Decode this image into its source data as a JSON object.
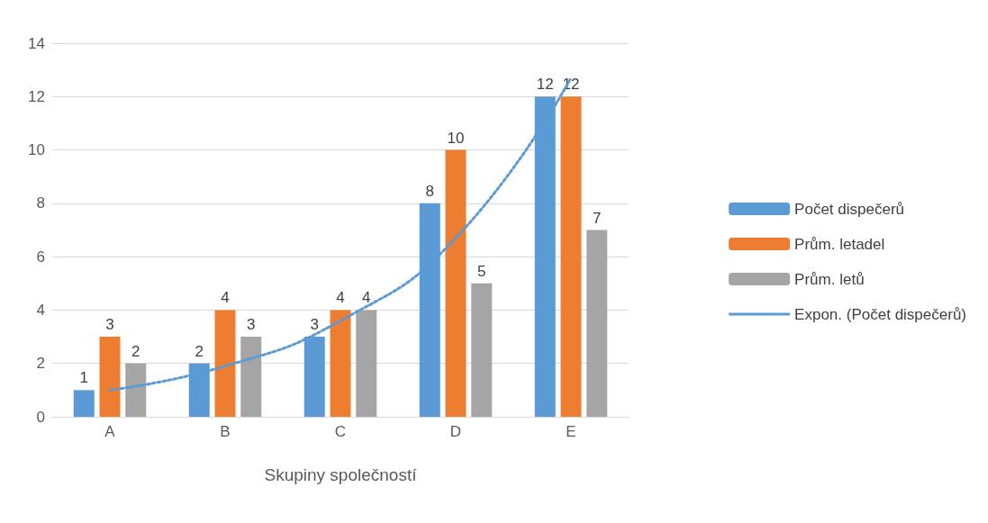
{
  "chart_data": {
    "type": "bar",
    "xlabel": "Skupiny společností",
    "categories": [
      "A",
      "B",
      "C",
      "D",
      "E"
    ],
    "series": [
      {
        "name": "Počet dispečerů",
        "color": "#5b9bd5",
        "values": [
          1,
          2,
          3,
          8,
          12
        ]
      },
      {
        "name": "Prům. letadel",
        "color": "#ed7d31",
        "values": [
          3,
          4,
          4,
          10,
          12
        ]
      },
      {
        "name": "Prům. letů",
        "color": "#a5a5a5",
        "values": [
          2,
          3,
          4,
          5,
          7
        ]
      },
      {
        "name": "Expon. (Počet dispečerů)",
        "type": "line",
        "color": "#5b9bd5",
        "line_style": "dotted",
        "marker": "none",
        "value_labels": [
          null,
          null,
          null,
          null,
          null
        ],
        "x": [
          "A",
          "B",
          "C",
          "D",
          "E"
        ],
        "values": [
          1.0,
          1.9,
          3.6,
          6.7,
          12.7
        ]
      }
    ],
    "ylim": [
      0,
      14
    ],
    "yticks": [
      0,
      2,
      4,
      6,
      8,
      10,
      12,
      14
    ],
    "grid": "y",
    "legend": "right",
    "data_labels": true
  }
}
